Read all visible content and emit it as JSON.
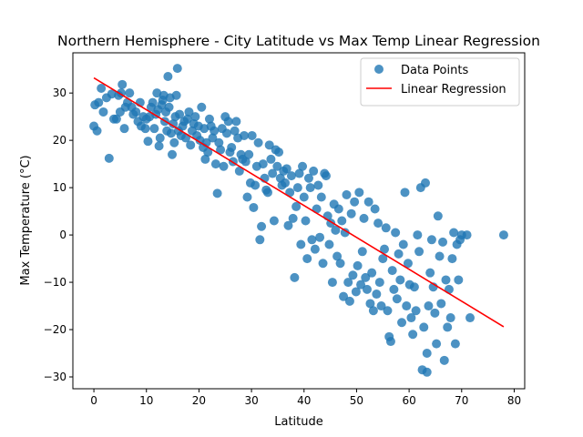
{
  "chart_data": {
    "type": "scatter",
    "title": "Northern Hemisphere - City Latitude vs Max Temp Linear Regression",
    "xlabel": "Latitude",
    "ylabel": "Max Temperature (°C)",
    "xlim": [
      -4,
      82
    ],
    "ylim": [
      -32.5,
      38.5
    ],
    "xticks": [
      0,
      10,
      20,
      30,
      40,
      50,
      60,
      70,
      80
    ],
    "yticks": [
      -30,
      -20,
      -10,
      0,
      10,
      20,
      30
    ],
    "grid": false,
    "legend_position": "top-right",
    "colors": {
      "points": "#1f77b4",
      "regression": "#ff0000"
    },
    "legend": [
      {
        "label": "Data Points",
        "marker": "circle"
      },
      {
        "label": "Linear Regression",
        "marker": "line"
      }
    ],
    "series": [
      {
        "name": "Data Points",
        "kind": "scatter",
        "points": [
          [
            0,
            23.0
          ],
          [
            0.2,
            27.5
          ],
          [
            0.6,
            22.0
          ],
          [
            0.9,
            28.0
          ],
          [
            1.4,
            31.0
          ],
          [
            1.8,
            26.0
          ],
          [
            2.4,
            29.0
          ],
          [
            2.9,
            16.2
          ],
          [
            3.4,
            29.8
          ],
          [
            3.8,
            24.5
          ],
          [
            4.3,
            24.5
          ],
          [
            4.7,
            29.5
          ],
          [
            5.0,
            26.0
          ],
          [
            5.2,
            30.0
          ],
          [
            5.4,
            31.8
          ],
          [
            5.8,
            22.5
          ],
          [
            6.0,
            27.0
          ],
          [
            6.4,
            28.0
          ],
          [
            6.8,
            30.0
          ],
          [
            7.2,
            27.0
          ],
          [
            7.5,
            25.5
          ],
          [
            8.0,
            26.0
          ],
          [
            8.4,
            24.0
          ],
          [
            8.8,
            28.0
          ],
          [
            9.0,
            23.0
          ],
          [
            9.4,
            25.0
          ],
          [
            9.8,
            22.5
          ],
          [
            10.0,
            24.5
          ],
          [
            10.3,
            19.8
          ],
          [
            10.6,
            25.0
          ],
          [
            10.9,
            27.0
          ],
          [
            11.2,
            28.0
          ],
          [
            11.5,
            22.5
          ],
          [
            11.8,
            25.5
          ],
          [
            12.0,
            30.0
          ],
          [
            12.2,
            26.5
          ],
          [
            12.4,
            18.8
          ],
          [
            12.6,
            20.5
          ],
          [
            12.9,
            27.5
          ],
          [
            13.1,
            28.5
          ],
          [
            13.3,
            29.5
          ],
          [
            13.5,
            24.0
          ],
          [
            13.7,
            26.0
          ],
          [
            13.9,
            22.0
          ],
          [
            14.1,
            33.5
          ],
          [
            14.3,
            27.0
          ],
          [
            14.5,
            29.0
          ],
          [
            14.7,
            21.5
          ],
          [
            14.9,
            17.0
          ],
          [
            15.1,
            23.5
          ],
          [
            15.3,
            19.5
          ],
          [
            15.5,
            25.0
          ],
          [
            15.7,
            29.5
          ],
          [
            15.9,
            35.2
          ],
          [
            16.1,
            22.0
          ],
          [
            16.3,
            25.5
          ],
          [
            16.6,
            21.0
          ],
          [
            16.9,
            23.0
          ],
          [
            17.2,
            24.0
          ],
          [
            17.5,
            20.5
          ],
          [
            17.8,
            24.5
          ],
          [
            18.1,
            26.0
          ],
          [
            18.4,
            19.0
          ],
          [
            18.7,
            22.0
          ],
          [
            19.0,
            23.5
          ],
          [
            19.3,
            25.0
          ],
          [
            19.6,
            21.0
          ],
          [
            19.9,
            23.0
          ],
          [
            20.2,
            20.0
          ],
          [
            20.5,
            27.0
          ],
          [
            20.8,
            18.5
          ],
          [
            21.0,
            22.5
          ],
          [
            21.2,
            16.0
          ],
          [
            21.4,
            19.5
          ],
          [
            21.7,
            17.5
          ],
          [
            22.0,
            24.5
          ],
          [
            22.3,
            23.0
          ],
          [
            22.6,
            20.5
          ],
          [
            22.9,
            22.0
          ],
          [
            23.2,
            15.0
          ],
          [
            23.5,
            8.8
          ],
          [
            23.8,
            19.5
          ],
          [
            24.1,
            18.0
          ],
          [
            24.4,
            22.5
          ],
          [
            24.7,
            14.5
          ],
          [
            25.0,
            25.0
          ],
          [
            25.3,
            21.5
          ],
          [
            25.6,
            24.0
          ],
          [
            25.9,
            17.5
          ],
          [
            26.2,
            18.5
          ],
          [
            26.5,
            15.5
          ],
          [
            26.8,
            22.0
          ],
          [
            27.1,
            24.0
          ],
          [
            27.4,
            20.5
          ],
          [
            27.7,
            13.5
          ],
          [
            28.0,
            17.0
          ],
          [
            28.3,
            16.0
          ],
          [
            28.6,
            21.0
          ],
          [
            28.9,
            15.5
          ],
          [
            29.2,
            8.0
          ],
          [
            29.5,
            17.0
          ],
          [
            29.8,
            11.0
          ],
          [
            30.1,
            21.0
          ],
          [
            30.4,
            5.8
          ],
          [
            30.7,
            10.5
          ],
          [
            31.0,
            14.5
          ],
          [
            31.3,
            19.5
          ],
          [
            31.6,
            -1.0
          ],
          [
            31.9,
            1.8
          ],
          [
            32.2,
            15.0
          ],
          [
            32.5,
            12.0
          ],
          [
            32.8,
            9.5
          ],
          [
            33.1,
            9.0
          ],
          [
            33.4,
            19.0
          ],
          [
            33.7,
            16.0
          ],
          [
            34.0,
            13.0
          ],
          [
            34.3,
            3.0
          ],
          [
            34.6,
            18.0
          ],
          [
            34.9,
            14.5
          ],
          [
            35.2,
            17.5
          ],
          [
            35.5,
            12.0
          ],
          [
            35.8,
            10.5
          ],
          [
            36.1,
            13.5
          ],
          [
            36.4,
            11.0
          ],
          [
            36.7,
            14.0
          ],
          [
            37.0,
            2.0
          ],
          [
            37.3,
            9.0
          ],
          [
            37.6,
            12.5
          ],
          [
            37.9,
            3.5
          ],
          [
            38.2,
            -9.0
          ],
          [
            38.5,
            6.0
          ],
          [
            38.8,
            10.0
          ],
          [
            39.1,
            13.0
          ],
          [
            39.4,
            -2.0
          ],
          [
            39.7,
            14.5
          ],
          [
            40.0,
            8.0
          ],
          [
            40.3,
            3.0
          ],
          [
            40.6,
            -5.0
          ],
          [
            40.9,
            12.0
          ],
          [
            41.2,
            10.0
          ],
          [
            41.5,
            -1.0
          ],
          [
            41.8,
            13.5
          ],
          [
            42.1,
            -3.0
          ],
          [
            42.4,
            5.5
          ],
          [
            42.7,
            10.5
          ],
          [
            43.0,
            -0.5
          ],
          [
            43.3,
            8.0
          ],
          [
            43.6,
            -6.0
          ],
          [
            43.9,
            13.0
          ],
          [
            44.2,
            12.5
          ],
          [
            44.5,
            4.0
          ],
          [
            44.8,
            -2.0
          ],
          [
            45.1,
            2.5
          ],
          [
            45.4,
            -10.0
          ],
          [
            45.7,
            6.5
          ],
          [
            46.0,
            1.0
          ],
          [
            46.3,
            -4.5
          ],
          [
            46.6,
            5.5
          ],
          [
            46.9,
            -6.0
          ],
          [
            47.2,
            3.0
          ],
          [
            47.5,
            -13.0
          ],
          [
            47.8,
            0.5
          ],
          [
            48.1,
            8.5
          ],
          [
            48.4,
            -10.0
          ],
          [
            48.7,
            -14.0
          ],
          [
            49.0,
            4.5
          ],
          [
            49.3,
            -8.5
          ],
          [
            49.6,
            7.0
          ],
          [
            49.9,
            -12.0
          ],
          [
            50.2,
            -6.5
          ],
          [
            50.5,
            9.0
          ],
          [
            50.8,
            -10.5
          ],
          [
            51.1,
            -3.5
          ],
          [
            51.4,
            3.5
          ],
          [
            51.7,
            -9.0
          ],
          [
            52.0,
            -11.5
          ],
          [
            52.3,
            7.0
          ],
          [
            52.6,
            -14.5
          ],
          [
            52.9,
            -8.0
          ],
          [
            53.2,
            -16.0
          ],
          [
            53.5,
            5.5
          ],
          [
            53.8,
            -12.5
          ],
          [
            54.1,
            2.5
          ],
          [
            54.4,
            -10.0
          ],
          [
            54.7,
            -15.0
          ],
          [
            55.0,
            -5.0
          ],
          [
            55.3,
            -3.0
          ],
          [
            55.6,
            1.5
          ],
          [
            55.9,
            -16.0
          ],
          [
            56.2,
            -21.5
          ],
          [
            56.5,
            -22.5
          ],
          [
            56.8,
            -7.5
          ],
          [
            57.1,
            -11.5
          ],
          [
            57.4,
            0.5
          ],
          [
            57.7,
            -13.5
          ],
          [
            58.0,
            -4.0
          ],
          [
            58.3,
            -9.5
          ],
          [
            58.6,
            -18.5
          ],
          [
            58.9,
            -2.0
          ],
          [
            59.2,
            9.0
          ],
          [
            59.5,
            -15.0
          ],
          [
            59.8,
            -6.0
          ],
          [
            60.1,
            -10.5
          ],
          [
            60.4,
            -17.5
          ],
          [
            60.7,
            -21.0
          ],
          [
            61.0,
            -11.0
          ],
          [
            61.3,
            -16.0
          ],
          [
            61.6,
            0.0
          ],
          [
            61.9,
            -3.5
          ],
          [
            62.2,
            10.0
          ],
          [
            62.5,
            -28.5
          ],
          [
            62.8,
            -19.5
          ],
          [
            63.1,
            11.0
          ],
          [
            63.4,
            -25.0
          ],
          [
            63.7,
            -15.0
          ],
          [
            64.0,
            -8.0
          ],
          [
            64.3,
            -1.0
          ],
          [
            64.6,
            -11.0
          ],
          [
            64.9,
            -16.5
          ],
          [
            65.2,
            -23.0
          ],
          [
            65.5,
            4.0
          ],
          [
            65.8,
            -4.5
          ],
          [
            66.1,
            -14.5
          ],
          [
            66.4,
            -1.5
          ],
          [
            66.7,
            -26.5
          ],
          [
            67.0,
            -9.5
          ],
          [
            67.3,
            -19.5
          ],
          [
            67.6,
            -11.5
          ],
          [
            67.9,
            -17.5
          ],
          [
            68.2,
            -5.0
          ],
          [
            68.5,
            0.5
          ],
          [
            68.8,
            -23.0
          ],
          [
            69.1,
            -2.0
          ],
          [
            69.4,
            -9.5
          ],
          [
            69.7,
            -1.0
          ],
          [
            70.0,
            0.0
          ],
          [
            71.0,
            0.0
          ],
          [
            71.6,
            -17.5
          ],
          [
            78.0,
            0.0
          ],
          [
            63.4,
            -29.0
          ]
        ]
      },
      {
        "name": "Linear Regression",
        "kind": "line",
        "points": [
          [
            0,
            33.2
          ],
          [
            78,
            -19.4
          ]
        ]
      }
    ]
  }
}
